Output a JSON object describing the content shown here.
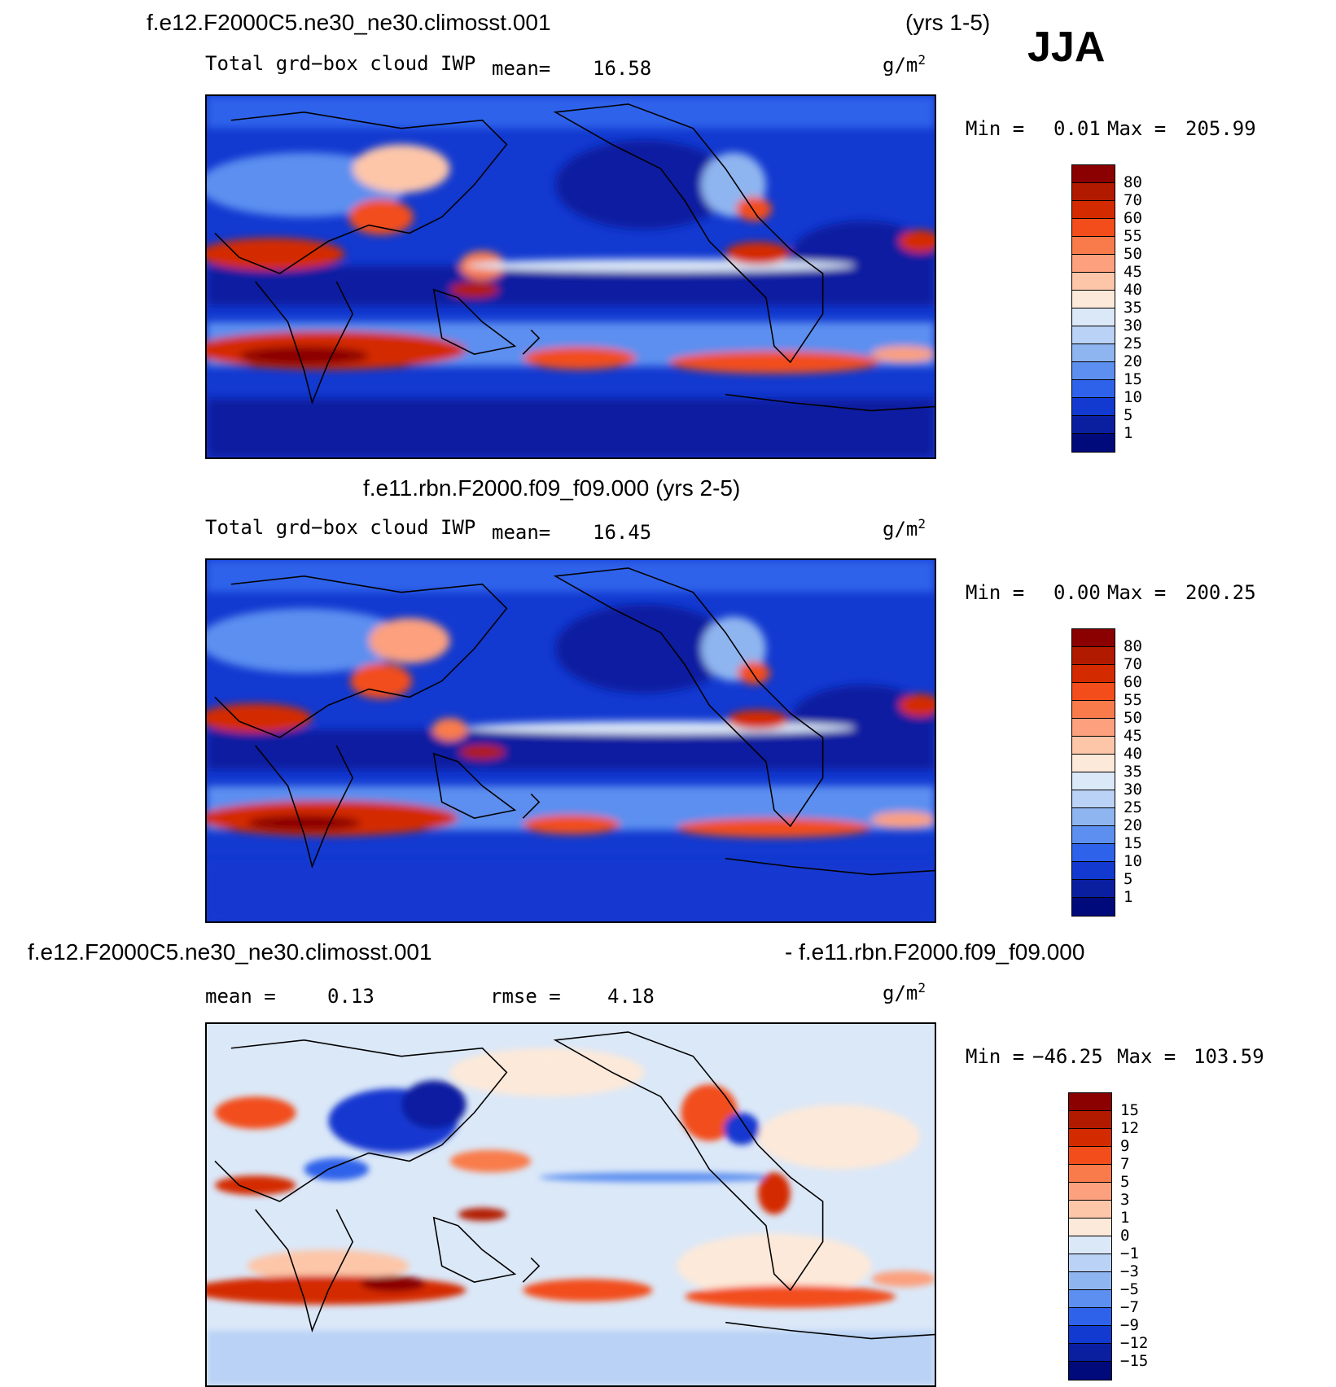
{
  "season": "JJA",
  "panel1": {
    "title": "f.e12.F2000C5.ne30_ne30.climosst.001",
    "years": "(yrs 1-5)",
    "variable": "Total grd−box cloud IWP",
    "mean_label": "mean=",
    "mean_value": "16.58",
    "unit": "g/m",
    "unit_exp": "2",
    "min_label": "Min =",
    "min_value": "0.01",
    "max_label": "Max =",
    "max_value": "205.99"
  },
  "panel2": {
    "title": "f.e11.rbn.F2000.f09_f09.000 (yrs 2-5)",
    "variable": "Total grd−box cloud IWP",
    "mean_label": "mean=",
    "mean_value": "16.45",
    "unit": "g/m",
    "unit_exp": "2",
    "min_label": "Min =",
    "min_value": "0.00",
    "max_label": "Max =",
    "max_value": "200.25"
  },
  "panel3": {
    "title_left": "f.e12.F2000C5.ne30_ne30.climosst.001",
    "title_right": "- f.e11.rbn.F2000.f09_f09.000",
    "mean_label": "mean =",
    "mean_value": "0.13",
    "rmse_label": "rmse =",
    "rmse_value": "4.18",
    "unit": "g/m",
    "unit_exp": "2",
    "min_label": "Min =",
    "min_value": "−46.25",
    "max_label": "Max =",
    "max_value": "103.59"
  },
  "legend_abs": {
    "labels": [
      "80",
      "70",
      "60",
      "55",
      "50",
      "45",
      "40",
      "35",
      "30",
      "25",
      "20",
      "15",
      "10",
      "5",
      "1"
    ],
    "colors": [
      "#8b0000",
      "#b21a00",
      "#d42a00",
      "#f24d1a",
      "#f97b4b",
      "#fca07e",
      "#fdc6a9",
      "#fde9d9",
      "#dbe8f8",
      "#b9d2f5",
      "#8fb5f0",
      "#5c8ff0",
      "#2e62ea",
      "#1239d0",
      "#0a1fa0",
      "#000a7a"
    ]
  },
  "legend_diff": {
    "labels": [
      "15",
      "12",
      "9",
      "7",
      "5",
      "3",
      "1",
      "0",
      "−1",
      "−3",
      "−5",
      "−7",
      "−9",
      "−12",
      "−15"
    ],
    "colors": [
      "#8b0000",
      "#b21a00",
      "#d42a00",
      "#f24d1a",
      "#f97b4b",
      "#fca07e",
      "#fdc6a9",
      "#fde9d9",
      "#dbe8f8",
      "#b9d2f5",
      "#8fb5f0",
      "#5c8ff0",
      "#2e62ea",
      "#1239d0",
      "#0a1fa0",
      "#000a7a"
    ]
  }
}
